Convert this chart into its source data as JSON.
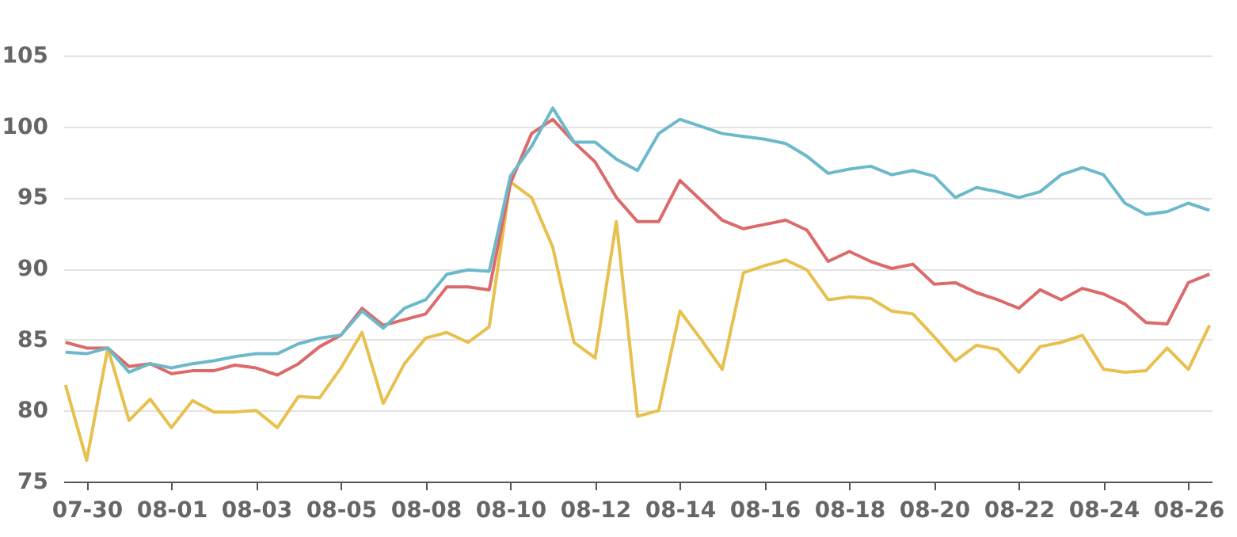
{
  "chart_data": {
    "type": "line",
    "ylim": [
      75,
      105
    ],
    "categories": [
      null,
      "07-30",
      null,
      null,
      null,
      "08-01",
      null,
      null,
      null,
      "08-03",
      null,
      null,
      null,
      "08-05",
      null,
      null,
      null,
      "08-08",
      null,
      null,
      null,
      "08-10",
      null,
      null,
      null,
      "08-12",
      null,
      null,
      null,
      "08-14",
      null,
      null,
      null,
      "08-16",
      null,
      null,
      null,
      "08-18",
      null,
      null,
      null,
      "08-20",
      null,
      null,
      null,
      "08-22",
      null,
      null,
      null,
      "08-24",
      null,
      null,
      null,
      "08-26",
      null
    ],
    "yticks": [
      75,
      80,
      85,
      90,
      95,
      100,
      105
    ],
    "grid": "y",
    "line_style": "solid",
    "marker": "none",
    "series": [
      {
        "color": "#e8c04e",
        "values": [
          81.8,
          76.5,
          84.4,
          79.3,
          80.8,
          78.8,
          80.7,
          79.9,
          79.9,
          80.0,
          78.8,
          81.0,
          80.9,
          83.0,
          85.5,
          80.5,
          83.3,
          85.1,
          85.5,
          84.8,
          85.9,
          96.1,
          95.0,
          91.5,
          84.8,
          83.7,
          93.3,
          79.6,
          80.0,
          87.0,
          85.0,
          82.9,
          89.7,
          90.2,
          90.6,
          89.9,
          87.8,
          88.0,
          87.9,
          87.0,
          86.8,
          85.2,
          83.5,
          84.6,
          84.3,
          82.7,
          84.5,
          84.8,
          85.3,
          82.9,
          82.7,
          82.8,
          84.4,
          82.9,
          86.0
        ]
      },
      {
        "color": "#dc6a6a",
        "values": [
          84.8,
          84.4,
          84.4,
          83.1,
          83.3,
          82.6,
          82.8,
          82.8,
          83.2,
          83.0,
          82.5,
          83.3,
          84.5,
          85.3,
          87.2,
          86.0,
          86.4,
          86.8,
          88.7,
          88.7,
          88.5,
          96.0,
          99.5,
          100.5,
          98.9,
          97.5,
          95.0,
          93.3,
          93.3,
          96.2,
          94.8,
          93.4,
          92.8,
          93.1,
          93.4,
          92.7,
          90.5,
          91.2,
          90.5,
          90.0,
          90.3,
          88.9,
          89.0,
          88.3,
          87.8,
          87.2,
          88.5,
          87.8,
          88.6,
          88.2,
          87.5,
          86.2,
          86.1,
          89.0,
          89.6
        ]
      },
      {
        "color": "#6cb9cb",
        "values": [
          84.1,
          84.0,
          84.4,
          82.7,
          83.3,
          83.0,
          83.3,
          83.5,
          83.8,
          84.0,
          84.0,
          84.7,
          85.1,
          85.3,
          87.0,
          85.8,
          87.2,
          87.8,
          89.6,
          89.9,
          89.8,
          96.5,
          98.6,
          101.3,
          98.9,
          98.9,
          97.7,
          96.9,
          99.5,
          100.5,
          100.0,
          99.5,
          99.3,
          99.1,
          98.8,
          97.9,
          96.7,
          97.0,
          97.2,
          96.6,
          96.9,
          96.5,
          95.0,
          95.7,
          95.4,
          95.0,
          95.4,
          96.6,
          97.1,
          96.6,
          94.6,
          93.8,
          94.0,
          94.6,
          94.1
        ]
      }
    ]
  }
}
